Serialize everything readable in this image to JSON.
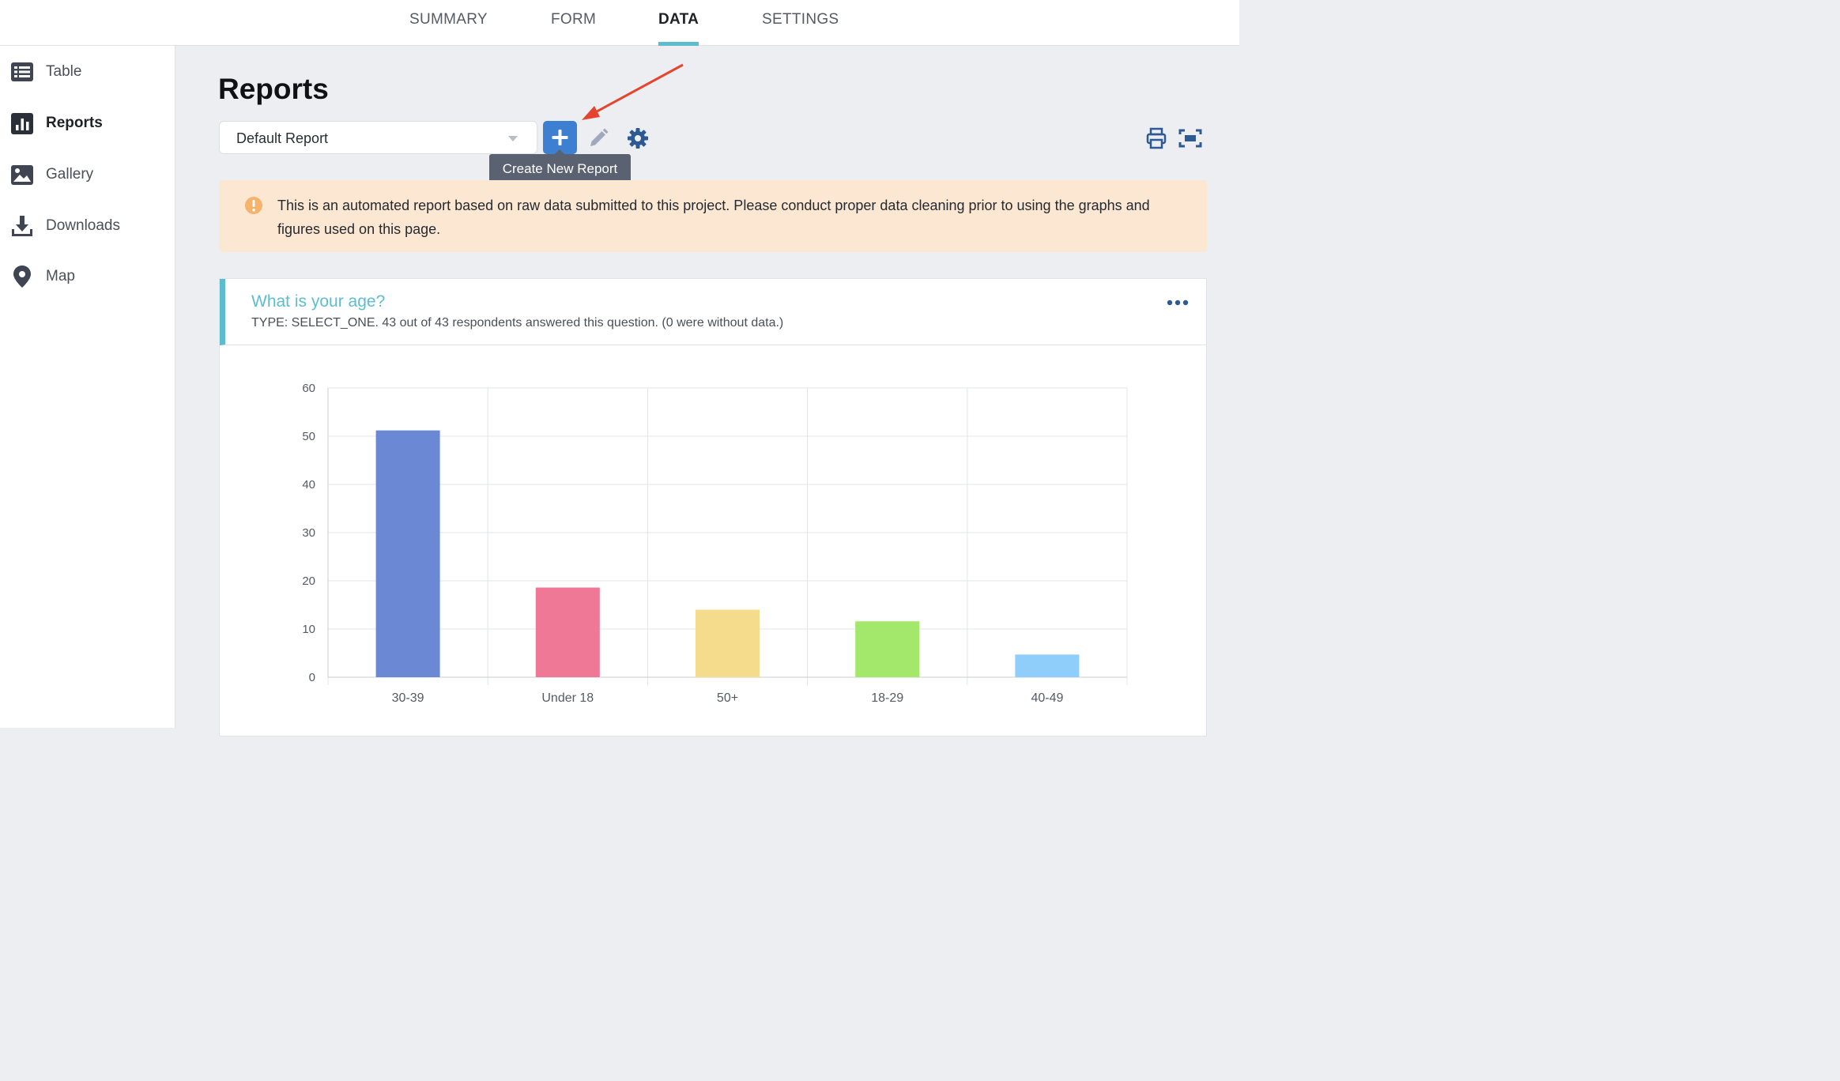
{
  "topnav": {
    "tabs": [
      {
        "label": "SUMMARY",
        "active": false
      },
      {
        "label": "FORM",
        "active": false
      },
      {
        "label": "DATA",
        "active": true
      },
      {
        "label": "SETTINGS",
        "active": false
      }
    ]
  },
  "sidebar": {
    "items": [
      {
        "label": "Table",
        "icon": "table-icon",
        "active": false
      },
      {
        "label": "Reports",
        "icon": "bar-chart-icon",
        "active": true
      },
      {
        "label": "Gallery",
        "icon": "image-icon",
        "active": false
      },
      {
        "label": "Downloads",
        "icon": "download-icon",
        "active": false
      },
      {
        "label": "Map",
        "icon": "map-pin-icon",
        "active": false
      }
    ]
  },
  "main": {
    "title": "Reports",
    "report_select": {
      "value": "Default Report"
    },
    "tooltip": "Create New Report",
    "alert": "This is an automated report based on raw data submitted to this project. Please conduct proper data cleaning prior to using the graphs and figures used on this page.",
    "question": {
      "title": "What is your age?",
      "subtitle": "TYPE: SELECT_ONE. 43 out of 43 respondents answered this question. (0 were without data.)"
    }
  },
  "colors": {
    "accent": "#5dbdcf",
    "primary_button": "#3d7fd1",
    "alert_bg": "#fbe7d2",
    "annotation_arrow": "#e5442e"
  },
  "chart_data": {
    "type": "bar",
    "categories": [
      "30-39",
      "Under 18",
      "50+",
      "18-29",
      "40-49"
    ],
    "values": [
      51.2,
      18.6,
      14.0,
      11.6,
      4.7
    ],
    "colors": [
      "#6a88d3",
      "#ee7896",
      "#f5dc8c",
      "#a4e86b",
      "#8fcdfa"
    ],
    "yticks": [
      0,
      10,
      20,
      30,
      40,
      50,
      60
    ],
    "ylim": [
      0,
      60
    ],
    "grid": true
  }
}
